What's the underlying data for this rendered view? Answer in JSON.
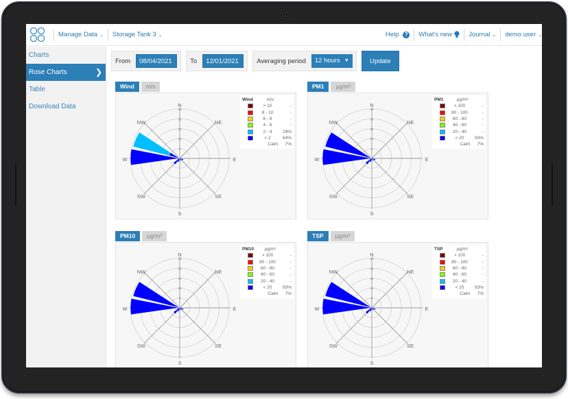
{
  "header": {
    "logo": "app-logo",
    "manage_data": "Manage Data",
    "site": "Storage Tank 3",
    "help": "Help",
    "whats_new": "What's new",
    "journal": "Journal",
    "user": "demo user"
  },
  "sidebar": {
    "items": [
      {
        "label": "Charts",
        "active": false
      },
      {
        "label": "Rose Charts",
        "active": true
      },
      {
        "label": "Table",
        "active": false
      },
      {
        "label": "Download Data",
        "active": false
      }
    ]
  },
  "toolbar": {
    "from_label": "From",
    "from_value": "08/04/2021",
    "to_label": "To",
    "to_value": "12/01/2021",
    "period_label": "Averaging period",
    "period_value": "12 hours",
    "update_label": "Update"
  },
  "colors": {
    "accent": "#2c7fb7",
    "bins": [
      "#7a0000",
      "#ff0000",
      "#ffcc00",
      "#7fff00",
      "#00bfff",
      "#0000ff"
    ]
  },
  "chart_data": [
    {
      "type": "rose",
      "title": "Wind",
      "unit": "m/s",
      "directions": [
        "N",
        "NE",
        "E",
        "SE",
        "S",
        "SW",
        "W",
        "NW"
      ],
      "ring_labels": [
        "8",
        "16",
        "24",
        "32",
        "40"
      ],
      "legend": [
        {
          "range": "> 10",
          "pct": "-"
        },
        {
          "range": "8 - 10",
          "pct": "-"
        },
        {
          "range": "6 - 8",
          "pct": "-"
        },
        {
          "range": "4 - 6",
          "pct": "-"
        },
        {
          "range": "2 - 4",
          "pct": "29%"
        },
        {
          "range": "< 2",
          "pct": "64%"
        }
      ],
      "calm_label": "Calm",
      "calm": "7%",
      "petals_pct": {
        "W": {
          "<2": 40,
          "2-4": 0
        },
        "WNW": {
          "<2": 10,
          "2-4": 29
        },
        "SW_small": 5,
        "ESE_small": 2
      }
    },
    {
      "type": "rose",
      "title": "PM1",
      "unit": "µg/m³",
      "directions": [
        "N",
        "NE",
        "E",
        "SE",
        "S",
        "SW",
        "W",
        "NW"
      ],
      "ring_labels": [
        "8",
        "16",
        "24",
        "32",
        "40"
      ],
      "legend": [
        {
          "range": "> 100",
          "pct": "-"
        },
        {
          "range": "80 - 100",
          "pct": "-"
        },
        {
          "range": "60 - 80",
          "pct": "-"
        },
        {
          "range": "40 - 60",
          "pct": "-"
        },
        {
          "range": "20 - 40",
          "pct": "-"
        },
        {
          "range": "< 20",
          "pct": "93%"
        }
      ],
      "calm_label": "Calm",
      "calm": "7%"
    },
    {
      "type": "rose",
      "title": "PM10",
      "unit": "µg/m³",
      "directions": [
        "N",
        "NE",
        "E",
        "SE",
        "S",
        "SW",
        "W",
        "NW"
      ],
      "ring_labels": [
        "8",
        "16",
        "24",
        "32",
        "40"
      ],
      "legend": [
        {
          "range": "> 100",
          "pct": "-"
        },
        {
          "range": "80 - 100",
          "pct": "-"
        },
        {
          "range": "60 - 80",
          "pct": "-"
        },
        {
          "range": "40 - 60",
          "pct": "-"
        },
        {
          "range": "20 - 40",
          "pct": "-"
        },
        {
          "range": "< 20",
          "pct": "93%"
        }
      ],
      "calm_label": "Calm",
      "calm": "7%"
    },
    {
      "type": "rose",
      "title": "TSP",
      "unit": "µg/m³",
      "directions": [
        "N",
        "NE",
        "E",
        "SE",
        "S",
        "SW",
        "W",
        "NW"
      ],
      "ring_labels": [
        "8",
        "16",
        "24",
        "32",
        "40"
      ],
      "legend": [
        {
          "range": "> 100",
          "pct": "-"
        },
        {
          "range": "80 - 100",
          "pct": "-"
        },
        {
          "range": "60 - 80",
          "pct": "-"
        },
        {
          "range": "40 - 60",
          "pct": "-"
        },
        {
          "range": "20 - 40",
          "pct": "-"
        },
        {
          "range": "< 20",
          "pct": "93%"
        }
      ],
      "calm_label": "Calm",
      "calm": "7%"
    }
  ]
}
